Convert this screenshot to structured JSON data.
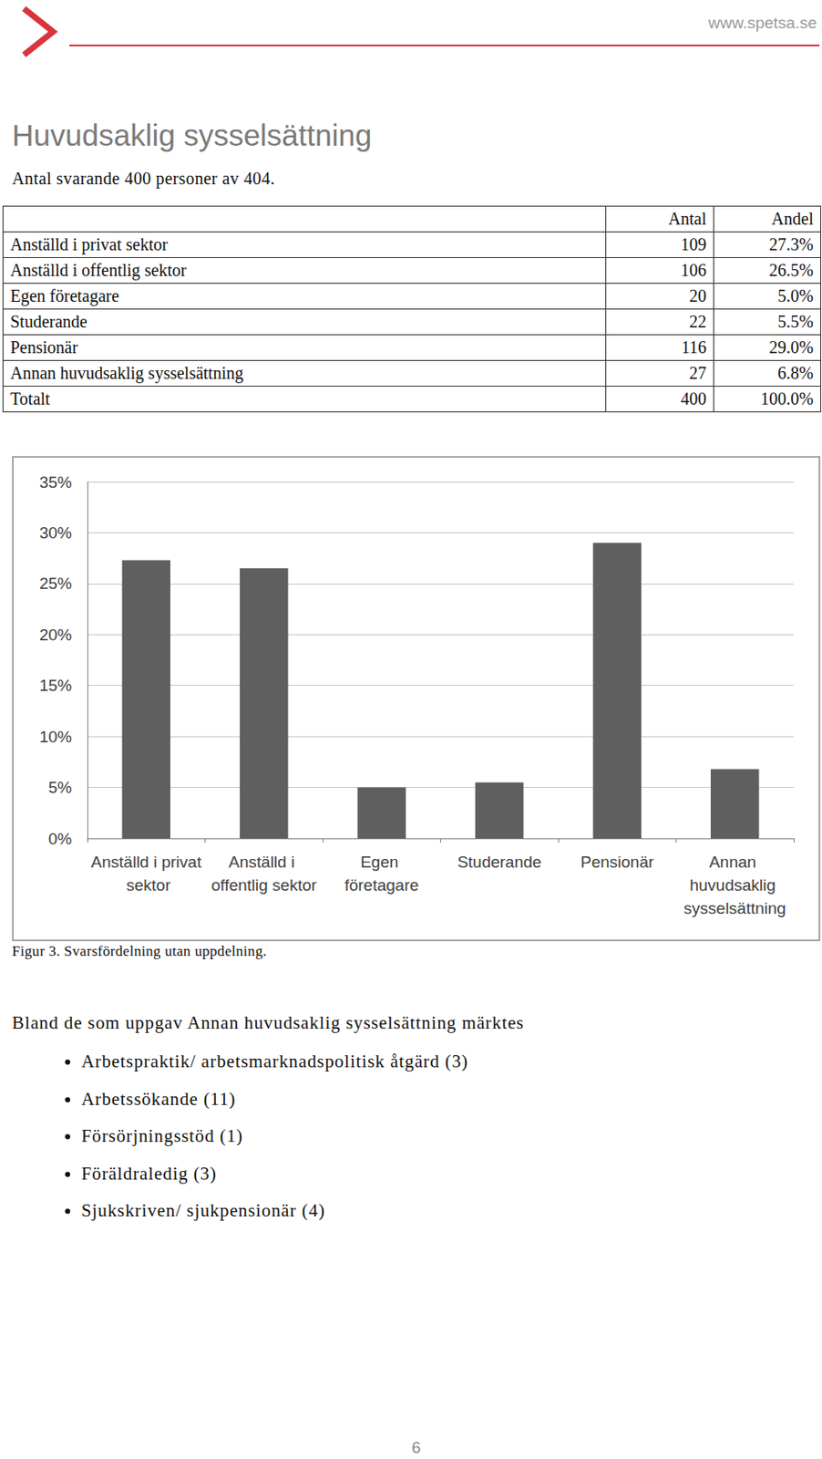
{
  "header": {
    "url": "www.spetsa.se"
  },
  "title": "Huvudsaklig sysselsättning",
  "subtitle": "Antal svarande 400 personer av 404.",
  "table": {
    "columns": [
      "Antal",
      "Andel"
    ],
    "rows": [
      [
        "Anställd i privat sektor",
        109,
        "27.3%"
      ],
      [
        "Anställd i offentlig sektor",
        106,
        "26.5%"
      ],
      [
        "Egen företagare",
        20,
        "5.0%"
      ],
      [
        "Studerande",
        22,
        "5.5%"
      ],
      [
        "Pensionär",
        116,
        "29.0%"
      ],
      [
        "Annan huvudsaklig sysselsättning",
        27,
        "6.8%"
      ],
      [
        "Totalt",
        400,
        "100.0%"
      ]
    ]
  },
  "chart_data": {
    "type": "bar",
    "categories": [
      "Anställd i privat sektor",
      "Anställd i offentlig sektor",
      "Egen företagare",
      "Studerande",
      "Pensionär",
      "Annan huvudsaklig sysselsättning"
    ],
    "values": [
      27.3,
      26.5,
      5.0,
      5.5,
      29.0,
      6.8
    ],
    "color": "#5f5f5f",
    "ylim": [
      0,
      35
    ],
    "yticks": [
      {
        "value": 0,
        "label": "0%"
      },
      {
        "value": 5,
        "label": "5%"
      },
      {
        "value": 10,
        "label": "10%"
      },
      {
        "value": 15,
        "label": "15%"
      },
      {
        "value": 20,
        "label": "20%"
      },
      {
        "value": 25,
        "label": "25%"
      },
      {
        "value": 30,
        "label": "30%"
      },
      {
        "value": 35,
        "label": "35%"
      }
    ],
    "grid": true
  },
  "caption": "Figur 3. Svarsfördelning utan uppdelning.",
  "list_intro": "Bland de som uppgav Annan huvudsaklig sysselsättning märktes",
  "list": [
    "Arbetspraktik/ arbetsmarknadspolitisk åtgärd (3)",
    "Arbetssökande (11)",
    "Försörjningsstöd (1)",
    "Föräldraledig (3)",
    "Sjukskriven/ sjukpensionär (4)"
  ],
  "page_number": 6
}
